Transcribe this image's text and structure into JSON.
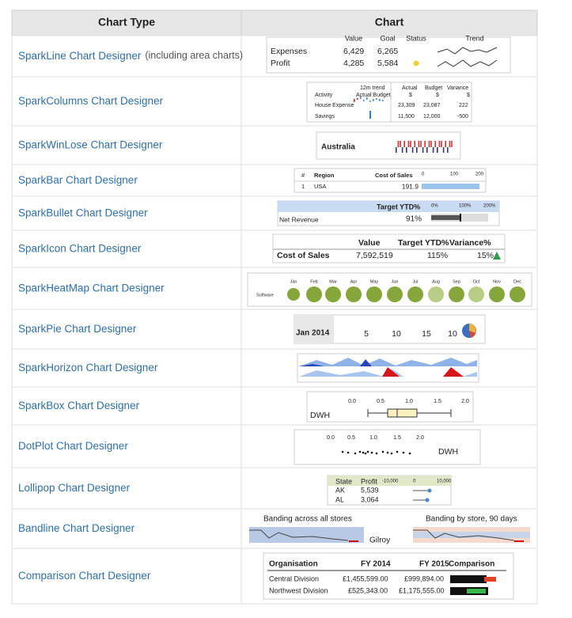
{
  "header": [
    "Chart Type",
    "Chart"
  ],
  "rows": [
    {
      "name": "SparkLine Chart Designer",
      "note": "(including area charts)",
      "texts": [
        "Value",
        "Goal",
        "Status",
        "Trend",
        "Expenses",
        "6,429",
        "6,265",
        "Profit",
        "4,285",
        "5,584"
      ]
    },
    {
      "name": "SparkColumns Chart Designer",
      "texts": [
        "12m trend",
        "Actual",
        "Budget",
        "Variance",
        "$",
        "$",
        "$",
        "Activity",
        "Actual:Budget",
        "House Expense",
        "23,309",
        "23,087",
        "222",
        "Savings",
        "11,500",
        "12,000",
        "-500"
      ]
    },
    {
      "name": "SparkWinLose Chart Designer",
      "texts": [
        "Australia"
      ]
    },
    {
      "name": "SparkBar Chart Designer",
      "texts": [
        "#",
        "Region",
        "Cost of Sales",
        "0",
        "100",
        "200",
        "1",
        "USA",
        "191.9"
      ]
    },
    {
      "name": "SparkBullet Chart Designer",
      "texts": [
        "Target YTD%",
        "0%",
        "100%",
        "200%",
        "Net Revenue",
        "91%"
      ]
    },
    {
      "name": "SparkIcon Chart Designer",
      "texts": [
        "Value",
        "Target YTD%",
        "Variance%",
        "Cost of Sales",
        "7,592,519",
        "115%",
        "15%"
      ]
    },
    {
      "name": "SparkHeatMap Chart Designer",
      "texts": [
        "Jan",
        "Feb",
        "Mar",
        "Apr",
        "May",
        "Jun",
        "Jul",
        "Aug",
        "Sep",
        "Oct",
        "Nov",
        "Dec",
        "Software"
      ]
    },
    {
      "name": "SparkPie Chart Designer",
      "texts": [
        "Jan 2014",
        "5",
        "10",
        "15",
        "10"
      ]
    },
    {
      "name": "SparkHorizon Chart Designer",
      "texts": []
    },
    {
      "name": "SparkBox Chart Designer",
      "texts": [
        "0.0",
        "0.5",
        "1.0",
        "1.5",
        "2.0",
        "DWH"
      ]
    },
    {
      "name": "DotPlot Chart Designer",
      "texts": [
        "0.0",
        "0.5",
        "1.0",
        "1.5",
        "2.0",
        "DWH"
      ]
    },
    {
      "name": "Lollipop Chart Designer",
      "texts": [
        "State",
        "Profit",
        "-10,000",
        "0",
        "10,000",
        "AK",
        "5,539",
        "AL",
        "3,064"
      ]
    },
    {
      "name": "Bandline Chart Designer",
      "texts": [
        "Banding across all stores",
        "Banding by store, 90 days",
        "Gilroy"
      ]
    },
    {
      "name": "Comparison Chart Designer",
      "texts": [
        "Organisation",
        "FY 2014",
        "FY 2015",
        "Comparison",
        "Central Division",
        "£1,455,599.00",
        "£999,894.00",
        "Northwest Division",
        "£525,343.00",
        "£1,175,555.00"
      ]
    }
  ]
}
